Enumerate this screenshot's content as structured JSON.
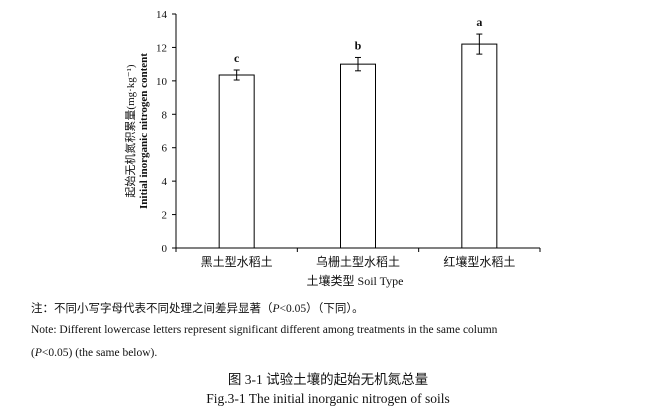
{
  "chart_data": {
    "type": "bar",
    "categories": [
      "黑土型水稻土",
      "乌栅土型水稻土",
      "红壤型水稻土"
    ],
    "values": [
      10.35,
      11.0,
      12.2
    ],
    "errors": [
      0.3,
      0.4,
      0.6
    ],
    "significance": [
      "c",
      "b",
      "a"
    ],
    "ylabel_cn": "起始无机氮积累量(mg·kg⁻¹)",
    "ylabel_en": "Initial inorganic nitrogen content",
    "xlabel": "土壤类型 Soil Type",
    "ylim": [
      0,
      14
    ],
    "yticks": [
      0,
      2,
      4,
      6,
      8,
      10,
      12,
      14
    ],
    "grid": false,
    "legend": "none",
    "bar_fill": "#ffffff",
    "bar_stroke": "#000000"
  },
  "notes": {
    "line1_a": "注：不同小写字母代表不同处理之间差异显著（",
    "line1_p": "P",
    "line1_b": "<0.05）（下同）。",
    "line2": "Note: Different lowercase letters represent significant different among treatments in the same column",
    "line3_a": "(",
    "line3_p": "P",
    "line3_b": "<0.05) (the same below)."
  },
  "caption": {
    "cn": "图 3-1 试验土壤的起始无机氮总量",
    "en": "Fig.3-1 The initial inorganic nitrogen of soils"
  }
}
